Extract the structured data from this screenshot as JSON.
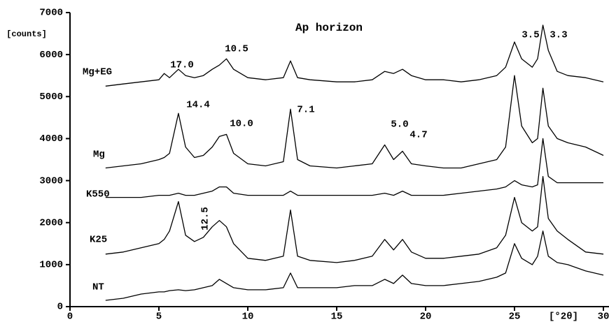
{
  "chart_data": {
    "type": "line",
    "title": "Ap horizon",
    "y_label": "[counts]",
    "x_label": "[°2θ]",
    "x": [
      2,
      3,
      4,
      5,
      5.3,
      5.6,
      6.1,
      6.5,
      7,
      7.5,
      8,
      8.4,
      8.8,
      9.2,
      10,
      11,
      12,
      12.4,
      12.8,
      13.5,
      15,
      16,
      17,
      17.7,
      18.2,
      18.7,
      19.2,
      20,
      21,
      22,
      23,
      24,
      24.5,
      25,
      25.4,
      26,
      26.3,
      26.6,
      26.9,
      27.4,
      28,
      29,
      30
    ],
    "series": [
      {
        "name": "Mg+EG",
        "color": "#000000",
        "values": [
          5250,
          5300,
          5350,
          5400,
          5550,
          5450,
          5650,
          5500,
          5450,
          5500,
          5650,
          5750,
          5900,
          5650,
          5450,
          5400,
          5450,
          5850,
          5450,
          5400,
          5350,
          5350,
          5400,
          5600,
          5550,
          5650,
          5500,
          5400,
          5400,
          5350,
          5400,
          5500,
          5700,
          6300,
          5900,
          5700,
          5900,
          6700,
          6100,
          5600,
          5500,
          5450,
          5350
        ]
      },
      {
        "name": "Mg",
        "color": "#000000",
        "values": [
          3300,
          3350,
          3400,
          3500,
          3550,
          3650,
          4600,
          3800,
          3550,
          3600,
          3800,
          4050,
          4100,
          3650,
          3400,
          3350,
          3450,
          4700,
          3500,
          3350,
          3300,
          3350,
          3400,
          3850,
          3500,
          3700,
          3400,
          3350,
          3300,
          3300,
          3400,
          3500,
          3800,
          5500,
          4300,
          3900,
          4000,
          5200,
          4300,
          4000,
          3900,
          3800,
          3600
        ]
      },
      {
        "name": "K550",
        "color": "#000000",
        "values": [
          2600,
          2600,
          2600,
          2650,
          2650,
          2650,
          2700,
          2650,
          2650,
          2700,
          2750,
          2850,
          2850,
          2700,
          2650,
          2650,
          2650,
          2750,
          2650,
          2650,
          2650,
          2650,
          2650,
          2700,
          2650,
          2750,
          2650,
          2650,
          2650,
          2700,
          2750,
          2800,
          2850,
          3000,
          2900,
          2850,
          2900,
          4000,
          3100,
          2950,
          2950,
          2950,
          2950
        ]
      },
      {
        "name": "K25",
        "color": "#000000",
        "values": [
          1250,
          1300,
          1400,
          1500,
          1600,
          1800,
          2500,
          1700,
          1550,
          1650,
          1900,
          2050,
          1900,
          1500,
          1150,
          1100,
          1200,
          2300,
          1200,
          1100,
          1050,
          1100,
          1200,
          1600,
          1350,
          1600,
          1300,
          1150,
          1150,
          1200,
          1250,
          1400,
          1700,
          2600,
          2000,
          1800,
          1900,
          3100,
          2100,
          1800,
          1600,
          1300,
          1250
        ]
      },
      {
        "name": "NT",
        "color": "#000000",
        "values": [
          150,
          200,
          300,
          350,
          350,
          380,
          400,
          380,
          400,
          450,
          500,
          650,
          550,
          450,
          400,
          400,
          450,
          800,
          450,
          450,
          450,
          500,
          500,
          650,
          550,
          750,
          550,
          500,
          500,
          550,
          600,
          700,
          800,
          1500,
          1150,
          1000,
          1200,
          1800,
          1200,
          1050,
          1000,
          850,
          750
        ]
      }
    ],
    "annotations": [
      "17.0",
      "10.5",
      "3.5",
      "3.3",
      "14.4",
      "10.0",
      "7.1",
      "5.0",
      "4.7",
      "12.5"
    ],
    "xlim": [
      0,
      30
    ],
    "xticks": [
      0,
      5,
      10,
      15,
      20,
      25,
      30
    ],
    "ylim": [
      0,
      7000
    ],
    "yticks": [
      0,
      1000,
      2000,
      3000,
      4000,
      5000,
      6000,
      7000
    ]
  }
}
